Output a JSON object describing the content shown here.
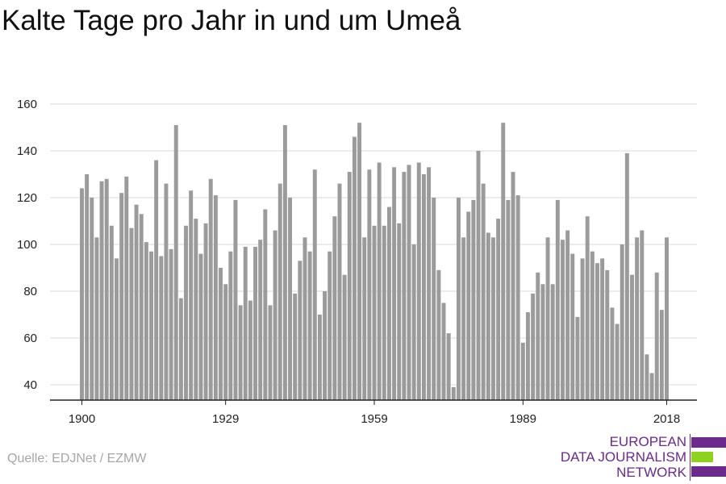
{
  "chart_data": {
    "type": "bar",
    "title": "Kalte Tage pro Jahr in und um Umeå",
    "xlabel": "",
    "ylabel": "",
    "ylim": [
      33,
      165
    ],
    "yticks": [
      40,
      60,
      80,
      100,
      120,
      140,
      160
    ],
    "xticks": [
      1900,
      1929,
      1959,
      1989,
      2018
    ],
    "grid": true,
    "x": [
      1900,
      1901,
      1902,
      1903,
      1904,
      1905,
      1906,
      1907,
      1908,
      1909,
      1910,
      1911,
      1912,
      1913,
      1914,
      1915,
      1916,
      1917,
      1918,
      1919,
      1920,
      1921,
      1922,
      1923,
      1924,
      1925,
      1926,
      1927,
      1928,
      1929,
      1930,
      1931,
      1932,
      1933,
      1934,
      1935,
      1936,
      1937,
      1938,
      1939,
      1940,
      1941,
      1942,
      1943,
      1944,
      1945,
      1946,
      1947,
      1948,
      1949,
      1950,
      1951,
      1952,
      1953,
      1954,
      1955,
      1956,
      1957,
      1958,
      1959,
      1960,
      1961,
      1962,
      1963,
      1964,
      1965,
      1966,
      1967,
      1968,
      1969,
      1970,
      1971,
      1972,
      1973,
      1974,
      1975,
      1976,
      1977,
      1978,
      1979,
      1980,
      1981,
      1982,
      1983,
      1984,
      1985,
      1986,
      1987,
      1988,
      1989,
      1990,
      1991,
      1992,
      1993,
      1994,
      1995,
      1996,
      1997,
      1998,
      1999,
      2000,
      2001,
      2002,
      2003,
      2004,
      2005,
      2006,
      2007,
      2008,
      2009,
      2010,
      2011,
      2012,
      2013,
      2014,
      2015,
      2016,
      2017,
      2018
    ],
    "values": [
      124,
      130,
      120,
      103,
      127,
      128,
      108,
      94,
      122,
      129,
      107,
      117,
      113,
      101,
      97,
      136,
      95,
      126,
      98,
      151,
      77,
      108,
      123,
      111,
      96,
      109,
      128,
      121,
      90,
      83,
      97,
      119,
      74,
      99,
      76,
      99,
      102,
      115,
      74,
      106,
      126,
      151,
      120,
      79,
      93,
      103,
      97,
      132,
      70,
      80,
      97,
      112,
      126,
      87,
      131,
      146,
      152,
      103,
      132,
      108,
      135,
      108,
      116,
      133,
      109,
      131,
      134,
      100,
      135,
      130,
      133,
      120,
      89,
      75,
      62,
      39,
      120,
      103,
      114,
      119,
      140,
      126,
      105,
      103,
      111,
      152,
      119,
      131,
      121,
      58,
      71,
      79,
      88,
      83,
      103,
      83,
      119,
      102,
      106,
      96,
      69,
      94,
      112,
      97,
      92,
      94,
      89,
      73,
      66,
      100,
      139,
      87,
      103,
      106,
      53,
      45,
      88,
      72,
      103
    ],
    "bar_color": "#9b9b9b"
  },
  "source": "Quelle: EDJNet / EZMW",
  "logo": {
    "line1": "EUROPEAN",
    "line2": "DATA JOURNALISM",
    "line3": "NETWORK",
    "color_primary": "#6b2a8c",
    "color_accent": "#8fd120"
  }
}
